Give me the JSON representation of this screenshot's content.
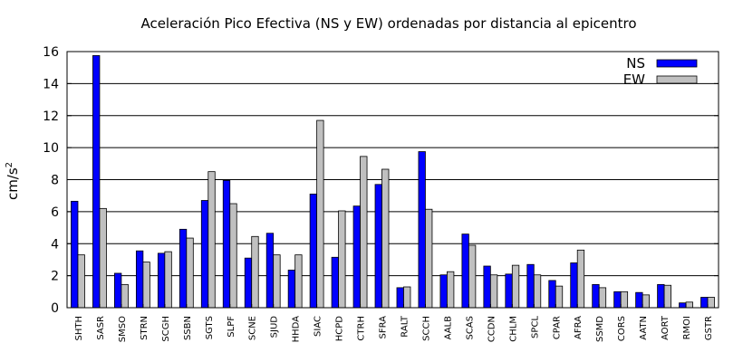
{
  "chart_data": {
    "type": "bar",
    "title": "Aceleración Pico Efectiva (NS y EW) ordenadas por distancia al epicentro",
    "ylabel": "cm/s",
    "ylabel_sup": "2",
    "xlabel": "",
    "ylim": [
      0,
      16
    ],
    "yticks": [
      "0",
      "2",
      "4",
      "6",
      "8",
      "10",
      "12",
      "14",
      "16"
    ],
    "grid": "horizontal",
    "legend_position": "top-right",
    "categories": [
      "SHTH",
      "SASR",
      "SMSO",
      "STRN",
      "SCGH",
      "SSBN",
      "SGTS",
      "SLPF",
      "SCNE",
      "SJUD",
      "HHDA",
      "SIAC",
      "HCPD",
      "CTRH",
      "SFRA",
      "RALT",
      "SCCH",
      "AALB",
      "SCAS",
      "CCDN",
      "CHLM",
      "SPCL",
      "CPAR",
      "AFRA",
      "SSMD",
      "CORS",
      "AATN",
      "AORT",
      "RMOI",
      "GSTR"
    ],
    "series": [
      {
        "name": "NS",
        "color": "#0000ff",
        "values": [
          6.65,
          15.75,
          2.15,
          3.55,
          3.4,
          4.9,
          6.7,
          7.95,
          3.1,
          4.65,
          2.35,
          7.1,
          3.15,
          6.35,
          7.7,
          1.25,
          9.75,
          2.05,
          4.6,
          2.6,
          2.1,
          2.7,
          1.7,
          2.8,
          1.45,
          1.0,
          0.95,
          1.45,
          0.3,
          0.65
        ]
      },
      {
        "name": "EW",
        "color": "#c0c0c0",
        "values": [
          3.3,
          6.2,
          1.45,
          2.85,
          3.5,
          4.35,
          8.5,
          6.5,
          4.45,
          3.3,
          3.3,
          11.7,
          6.05,
          9.45,
          8.65,
          1.3,
          6.15,
          2.25,
          3.9,
          2.05,
          2.65,
          2.05,
          1.35,
          3.6,
          1.25,
          1.0,
          0.8,
          1.4,
          0.35,
          0.65
        ]
      }
    ]
  }
}
